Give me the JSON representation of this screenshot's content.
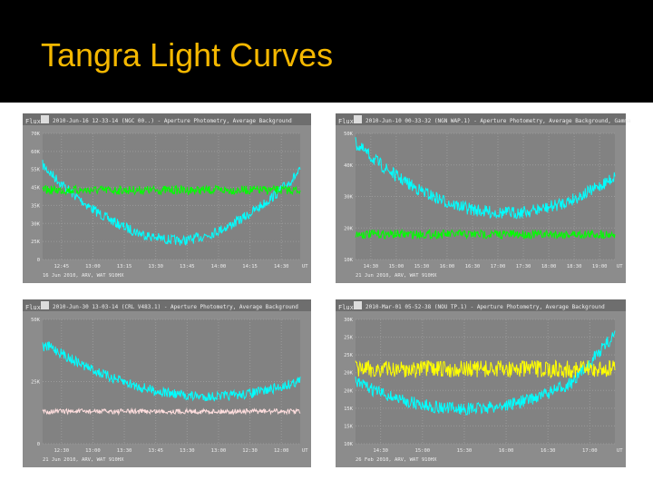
{
  "title": "Tangra Light Curves",
  "panels": [
    {
      "window_title": "2010-Jun-16 12-33-14 (NGC 00..) - Aperture Photometry, Average Background",
      "y_axis": "Flux",
      "y_labels": [
        "70K",
        "60K",
        "55K",
        "45K",
        "35K",
        "30K",
        "25K",
        "0"
      ],
      "x_labels": [
        "12:45",
        "13:00",
        "13:15",
        "13:30",
        "13:45",
        "14:00",
        "14:15",
        "14:30"
      ],
      "x_unit": "UT",
      "footer": "16 Jun 2010, ARV, WAT 910HX"
    },
    {
      "window_title": "2010-Jun-10 00-33-32 (NGN WAP.1) - Aperture Photometry, Average Background, Gamma",
      "y_axis": "Flux",
      "y_labels": [
        "50K",
        "40K",
        "30K",
        "20K",
        "10K"
      ],
      "x_labels": [
        "14:30",
        "15:00",
        "15:30",
        "16:00",
        "16:30",
        "17:00",
        "17:30",
        "18:00",
        "18:30",
        "19:00"
      ],
      "x_unit": "UT",
      "footer": "21 Jun 2010, ARV, WAT 910HX"
    },
    {
      "window_title": "2010-Jun-30 13-03-14 (CRL V483.1) - Aperture Photometry, Average Background",
      "y_axis": "Flux",
      "y_labels": [
        "50K",
        "25K",
        "0"
      ],
      "x_labels": [
        "12:30",
        "13:00",
        "13:30",
        "13:45",
        "13:30",
        "13:00",
        "12:30",
        "12:00"
      ],
      "x_unit": "UT",
      "footer": "21 Jun 2010, ARV, WAT 910HX"
    },
    {
      "window_title": "2010-Mar-01 05-52-38 (NOU TP.1) - Aperture Photometry, Average Background",
      "y_axis": "Flux",
      "y_labels": [
        "30K",
        "25K",
        "25K",
        "20K",
        "20K",
        "15K",
        "15K",
        "10K"
      ],
      "x_labels": [
        "14:30",
        "15:00",
        "15:30",
        "16:00",
        "16:30",
        "17:00"
      ],
      "x_unit": "UT",
      "footer": "26 Feb 2010, ARV, WAT 910HX"
    }
  ]
}
